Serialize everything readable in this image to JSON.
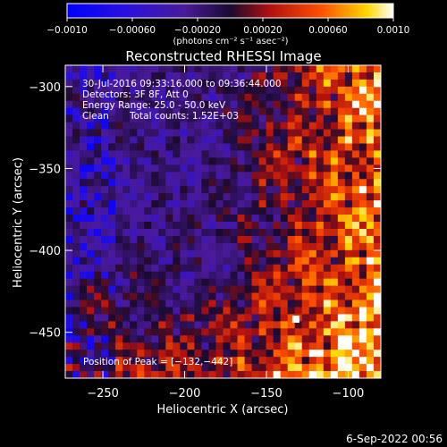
{
  "chart_data": {
    "type": "heatmap",
    "title": "Reconstructed RHESSI Image",
    "xlabel": "Heliocentric X (arcsec)",
    "ylabel": "Heliocentric Y (arcsec)",
    "xlim": [
      -273,
      -80
    ],
    "ylim": [
      -478,
      -287
    ],
    "x_ticks": [
      -250,
      -200,
      -150,
      -100
    ],
    "x_tick_labels": [
      "−250",
      "−200",
      "−150",
      "−100"
    ],
    "y_ticks": [
      -300,
      -350,
      -400,
      -450
    ],
    "y_tick_labels": [
      "−300",
      "−350",
      "−400",
      "−450"
    ],
    "colorbar": {
      "min": -0.001,
      "max": 0.001,
      "ticks": [
        -0.001,
        -0.0006,
        -0.0002,
        0.0002,
        0.0006,
        0.001
      ],
      "tick_labels": [
        "−0.0010",
        "−0.00060",
        "−0.00020",
        "0.00020",
        "0.00060",
        "0.0010"
      ],
      "unit_label": "(photons cm⁻² s⁻¹ asec⁻²)",
      "colormap": "blue-purple-red-yellow-white"
    },
    "annotations": {
      "time_range": "30-Jul-2016 09:33:16.000 to 09:36:44.000",
      "detectors": "Detectors: 3F 8F, Att 0",
      "energy": "Energy Range: 25.0 - 50.0 keV",
      "method": "Clean",
      "total_counts": "Total counts: 1.52E+03",
      "peak": "Position of Peak = [−132,−442]"
    },
    "peak": {
      "x": -132,
      "y": -442
    },
    "grid": false
  },
  "footer": {
    "date": "6-Sep-2022 00:56"
  }
}
